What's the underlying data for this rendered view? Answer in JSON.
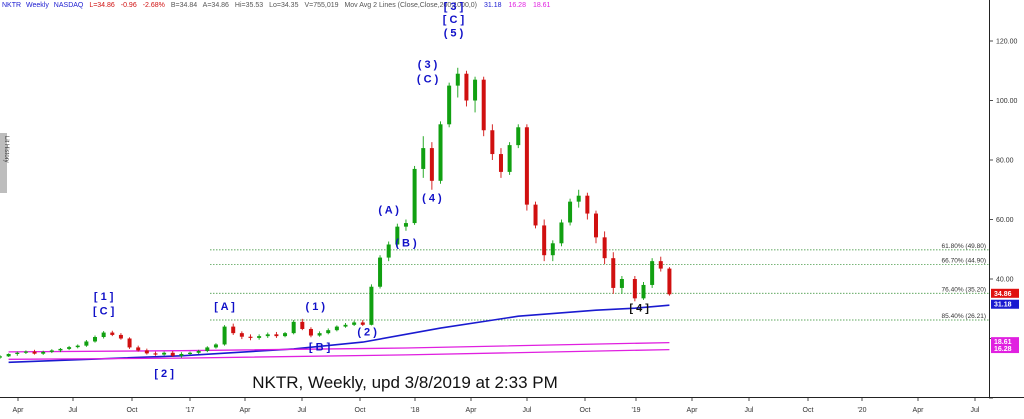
{
  "header": {
    "symbol": "NKTR",
    "interval": "Weekly",
    "exchange": "NASDAQ",
    "last": "L=34.86",
    "change": "-0.96",
    "change_pct": "-2.68%",
    "bid": "B=34.84",
    "ask": "A=34.86",
    "high": "Hi=35.53",
    "low": "Lo=34.35",
    "volume": "V=755,019",
    "ma_label": "Mov Avg 2 Lines (Close,Close,200,1000,0)",
    "ma_values": [
      "31.18",
      "16.28",
      "18.61"
    ]
  },
  "side_tab": "Lit History",
  "caption": "NKTR, Weekly, upd 3/8/2019 at 2:33 PM",
  "colors": {
    "up": "#11a011",
    "down": "#d01010",
    "ma200": "#1a1ad0",
    "ma1000": "#e020e0",
    "wave": "#1010c8",
    "fib": "#2a8a2a"
  },
  "chart_data": {
    "type": "candlestick",
    "interval": "weekly",
    "ylim": [
      0,
      135
    ],
    "y_ticks": [
      "120.00",
      "100.00",
      "80.00",
      "60.00",
      "40.00"
    ],
    "x_ticks": [
      "Apr",
      "Jul",
      "Oct",
      "'17",
      "Apr",
      "Jul",
      "Oct",
      "'18",
      "Apr",
      "Jul",
      "Oct",
      "'19",
      "Apr",
      "Jul",
      "Oct",
      "'20",
      "Apr",
      "Jul"
    ],
    "x_range": [
      "2016-03-14",
      "2020-08-03"
    ],
    "candles": [
      [
        "2016-03-14",
        13.6,
        14.4,
        13.2,
        14.0
      ],
      [
        "2016-03-28",
        14.0,
        15.0,
        13.8,
        14.8
      ],
      [
        "2016-04-11",
        14.8,
        15.6,
        14.2,
        15.2
      ],
      [
        "2016-04-25",
        15.2,
        16.0,
        14.8,
        15.6
      ],
      [
        "2016-05-09",
        15.6,
        16.2,
        14.6,
        14.9
      ],
      [
        "2016-05-23",
        14.9,
        15.9,
        14.5,
        15.5
      ],
      [
        "2016-06-06",
        15.5,
        16.4,
        15.1,
        16.0
      ],
      [
        "2016-06-20",
        16.0,
        16.8,
        15.4,
        16.5
      ],
      [
        "2016-07-04",
        16.5,
        17.5,
        16.1,
        17.1
      ],
      [
        "2016-07-18",
        17.1,
        18.0,
        16.7,
        17.6
      ],
      [
        "2016-08-01",
        17.6,
        19.5,
        17.2,
        19.0
      ],
      [
        "2016-08-15",
        19.0,
        21.0,
        18.6,
        20.5
      ],
      [
        "2016-08-29",
        20.5,
        22.5,
        20.0,
        22.0
      ],
      [
        "2016-09-12",
        22.0,
        22.6,
        20.8,
        21.2
      ],
      [
        "2016-09-26",
        21.2,
        21.8,
        19.6,
        20.0
      ],
      [
        "2016-10-10",
        20.0,
        20.4,
        16.5,
        17.0
      ],
      [
        "2016-10-24",
        17.0,
        17.6,
        15.6,
        16.0
      ],
      [
        "2016-11-07",
        16.0,
        16.6,
        14.6,
        15.0
      ],
      [
        "2016-11-21",
        15.0,
        15.6,
        14.2,
        14.6
      ],
      [
        "2016-12-05",
        14.6,
        15.6,
        14.2,
        15.2
      ],
      [
        "2016-12-19",
        15.2,
        15.8,
        13.8,
        14.2
      ],
      [
        "2017-01-02",
        14.2,
        15.4,
        13.5,
        14.8
      ],
      [
        "2017-01-16",
        14.8,
        15.6,
        14.4,
        15.2
      ],
      [
        "2017-01-30",
        15.2,
        16.2,
        14.8,
        15.8
      ],
      [
        "2017-02-13",
        15.8,
        17.4,
        15.4,
        17.0
      ],
      [
        "2017-02-27",
        17.0,
        18.4,
        16.6,
        18.0
      ],
      [
        "2017-03-13",
        18.0,
        24.5,
        17.6,
        24.0
      ],
      [
        "2017-03-27",
        24.0,
        25.0,
        21.2,
        21.8
      ],
      [
        "2017-04-10",
        21.8,
        22.4,
        19.8,
        20.6
      ],
      [
        "2017-04-24",
        20.6,
        21.4,
        19.4,
        20.2
      ],
      [
        "2017-05-08",
        20.2,
        21.4,
        19.6,
        20.8
      ],
      [
        "2017-05-22",
        20.8,
        22.0,
        20.2,
        21.4
      ],
      [
        "2017-06-05",
        21.4,
        22.2,
        20.2,
        20.8
      ],
      [
        "2017-06-19",
        20.8,
        22.2,
        20.4,
        21.8
      ],
      [
        "2017-07-03",
        21.8,
        26.2,
        21.4,
        25.6
      ],
      [
        "2017-07-17",
        25.6,
        26.6,
        22.8,
        23.2
      ],
      [
        "2017-07-31",
        23.2,
        23.8,
        20.4,
        21.0
      ],
      [
        "2017-08-14",
        21.0,
        22.4,
        20.6,
        21.8
      ],
      [
        "2017-08-28",
        21.8,
        23.4,
        21.4,
        22.8
      ],
      [
        "2017-09-11",
        22.8,
        24.4,
        22.4,
        24.0
      ],
      [
        "2017-09-25",
        24.0,
        25.2,
        23.6,
        24.6
      ],
      [
        "2017-10-09",
        24.6,
        26.0,
        24.2,
        25.4
      ],
      [
        "2017-10-23",
        25.4,
        26.2,
        24.2,
        24.6
      ],
      [
        "2017-11-06",
        24.6,
        38.2,
        24.4,
        37.4
      ],
      [
        "2017-11-20",
        37.4,
        48.0,
        36.8,
        47.2
      ],
      [
        "2017-12-04",
        47.2,
        52.6,
        46.0,
        51.6
      ],
      [
        "2017-12-18",
        51.6,
        58.6,
        50.6,
        57.6
      ],
      [
        "2018-01-01",
        57.6,
        60.0,
        56.2,
        58.8
      ],
      [
        "2018-01-15",
        58.8,
        78.0,
        58.2,
        77.0
      ],
      [
        "2018-01-29",
        77.0,
        88.0,
        74.0,
        84.0
      ],
      [
        "2018-02-12",
        84.0,
        86.0,
        70.0,
        73.0
      ],
      [
        "2018-02-26",
        73.0,
        93.0,
        72.0,
        92.0
      ],
      [
        "2018-03-12",
        92.0,
        106.0,
        91.0,
        105.0
      ],
      [
        "2018-03-26",
        105.0,
        111.0,
        101.0,
        109.0
      ],
      [
        "2018-04-09",
        109.0,
        110.0,
        98.0,
        100.0
      ],
      [
        "2018-04-23",
        100.0,
        108.0,
        96.0,
        107.0
      ],
      [
        "2018-05-07",
        107.0,
        108.0,
        88.0,
        90.0
      ],
      [
        "2018-05-21",
        90.0,
        92.0,
        80.0,
        82.0
      ],
      [
        "2018-06-04",
        82.0,
        84.0,
        74.0,
        76.0
      ],
      [
        "2018-06-18",
        76.0,
        86.0,
        75.0,
        85.0
      ],
      [
        "2018-07-02",
        85.0,
        92.0,
        84.0,
        91.0
      ],
      [
        "2018-07-16",
        91.0,
        92.0,
        63.0,
        65.0
      ],
      [
        "2018-07-30",
        65.0,
        66.0,
        57.0,
        58.0
      ],
      [
        "2018-08-13",
        58.0,
        60.0,
        46.0,
        48.0
      ],
      [
        "2018-08-27",
        48.0,
        53.0,
        46.0,
        52.0
      ],
      [
        "2018-09-10",
        52.0,
        60.0,
        51.0,
        59.0
      ],
      [
        "2018-09-24",
        59.0,
        67.0,
        58.0,
        66.0
      ],
      [
        "2018-10-08",
        66.0,
        70.0,
        64.0,
        68.0
      ],
      [
        "2018-10-22",
        68.0,
        69.0,
        60.0,
        62.0
      ],
      [
        "2018-11-05",
        62.0,
        63.0,
        52.0,
        54.0
      ],
      [
        "2018-11-19",
        54.0,
        56.0,
        45.0,
        47.0
      ],
      [
        "2018-12-03",
        47.0,
        49.0,
        35.0,
        37.0
      ],
      [
        "2018-12-17",
        37.0,
        41.0,
        35.0,
        40.0
      ],
      [
        "2019-01-07",
        40.0,
        41.0,
        32.5,
        33.5
      ],
      [
        "2019-01-21",
        33.5,
        39.0,
        33.0,
        38.0
      ],
      [
        "2019-02-04",
        38.0,
        47.0,
        37.0,
        46.0
      ],
      [
        "2019-02-18",
        46.0,
        47.5,
        42.5,
        43.5
      ],
      [
        "2019-03-04",
        43.5,
        44.0,
        34.4,
        34.86
      ]
    ],
    "moving_averages": [
      {
        "name": "200",
        "value": "31.18",
        "points": [
          [
            "2016-03-28",
            12.0
          ],
          [
            "2017-01-02",
            14.2
          ],
          [
            "2017-07-03",
            16.5
          ],
          [
            "2017-10-23",
            18.8
          ],
          [
            "2018-02-26",
            23.5
          ],
          [
            "2018-07-02",
            27.5
          ],
          [
            "2018-11-05",
            29.5
          ],
          [
            "2019-01-07",
            30.2
          ],
          [
            "2019-03-04",
            31.18
          ]
        ]
      },
      {
        "name": "1000 close",
        "value": "18.61",
        "points": [
          [
            "2016-03-28",
            15.5
          ],
          [
            "2017-01-02",
            15.9
          ],
          [
            "2018-01-01",
            16.8
          ],
          [
            "2019-03-04",
            18.61
          ]
        ]
      },
      {
        "name": "1000 close",
        "value": "16.28",
        "points": [
          [
            "2016-03-28",
            13.0
          ],
          [
            "2017-01-02",
            13.4
          ],
          [
            "2018-01-01",
            14.5
          ],
          [
            "2019-03-04",
            16.28
          ]
        ]
      }
    ],
    "fib_levels": [
      {
        "label": "61.80% (49.80)",
        "value": 49.8
      },
      {
        "label": "66.70% (44.90)",
        "value": 44.9
      },
      {
        "label": "76.40% (35.20)",
        "value": 35.2
      },
      {
        "label": "85.40% (26.21)",
        "value": 26.21
      }
    ],
    "price_badges": [
      {
        "value": "34.86",
        "color": "#e01010"
      },
      {
        "value": "31.18",
        "color": "#1a1ad0"
      },
      {
        "value": "18.61",
        "color": "#e020e0"
      },
      {
        "value": "16.28",
        "color": "#e020e0"
      }
    ],
    "wave_labels": [
      {
        "text": "[ 1 ]",
        "date": "2016-08-29",
        "price": 33.0,
        "color": "blue"
      },
      {
        "text": "[ C ]",
        "date": "2016-08-29",
        "price": 28.0,
        "color": "blue"
      },
      {
        "text": "[ 2 ]",
        "date": "2016-12-05",
        "price": 7.0,
        "color": "blue"
      },
      {
        "text": "[ A ]",
        "date": "2017-03-13",
        "price": 29.5,
        "color": "blue"
      },
      {
        "text": "[ B ]",
        "date": "2017-08-14",
        "price": 16.0,
        "color": "blue"
      },
      {
        "text": "( 1 )",
        "date": "2017-08-07",
        "price": 29.5,
        "color": "blue"
      },
      {
        "text": "( 2 )",
        "date": "2017-10-30",
        "price": 21.0,
        "color": "blue"
      },
      {
        "text": "( A )",
        "date": "2017-12-04",
        "price": 62.0,
        "color": "blue"
      },
      {
        "text": "( B )",
        "date": "2018-01-01",
        "price": 51.0,
        "color": "blue"
      },
      {
        "text": "( 4 )",
        "date": "2018-02-12",
        "price": 66.0,
        "color": "blue"
      },
      {
        "text": "( 3 )",
        "date": "2018-02-05",
        "price": 111.0,
        "color": "blue"
      },
      {
        "text": "( C )",
        "date": "2018-02-05",
        "price": 106.0,
        "color": "blue"
      },
      {
        "text": "[ 3 ]",
        "date": "2018-03-19",
        "price": 130.5,
        "color": "blue"
      },
      {
        "text": "[ C ]",
        "date": "2018-03-19",
        "price": 126.0,
        "color": "blue"
      },
      {
        "text": "( 5 )",
        "date": "2018-03-19",
        "price": 121.5,
        "color": "blue"
      },
      {
        "text": "[ 4 ]",
        "date": "2019-01-14",
        "price": 29.0,
        "color": "black"
      }
    ]
  }
}
